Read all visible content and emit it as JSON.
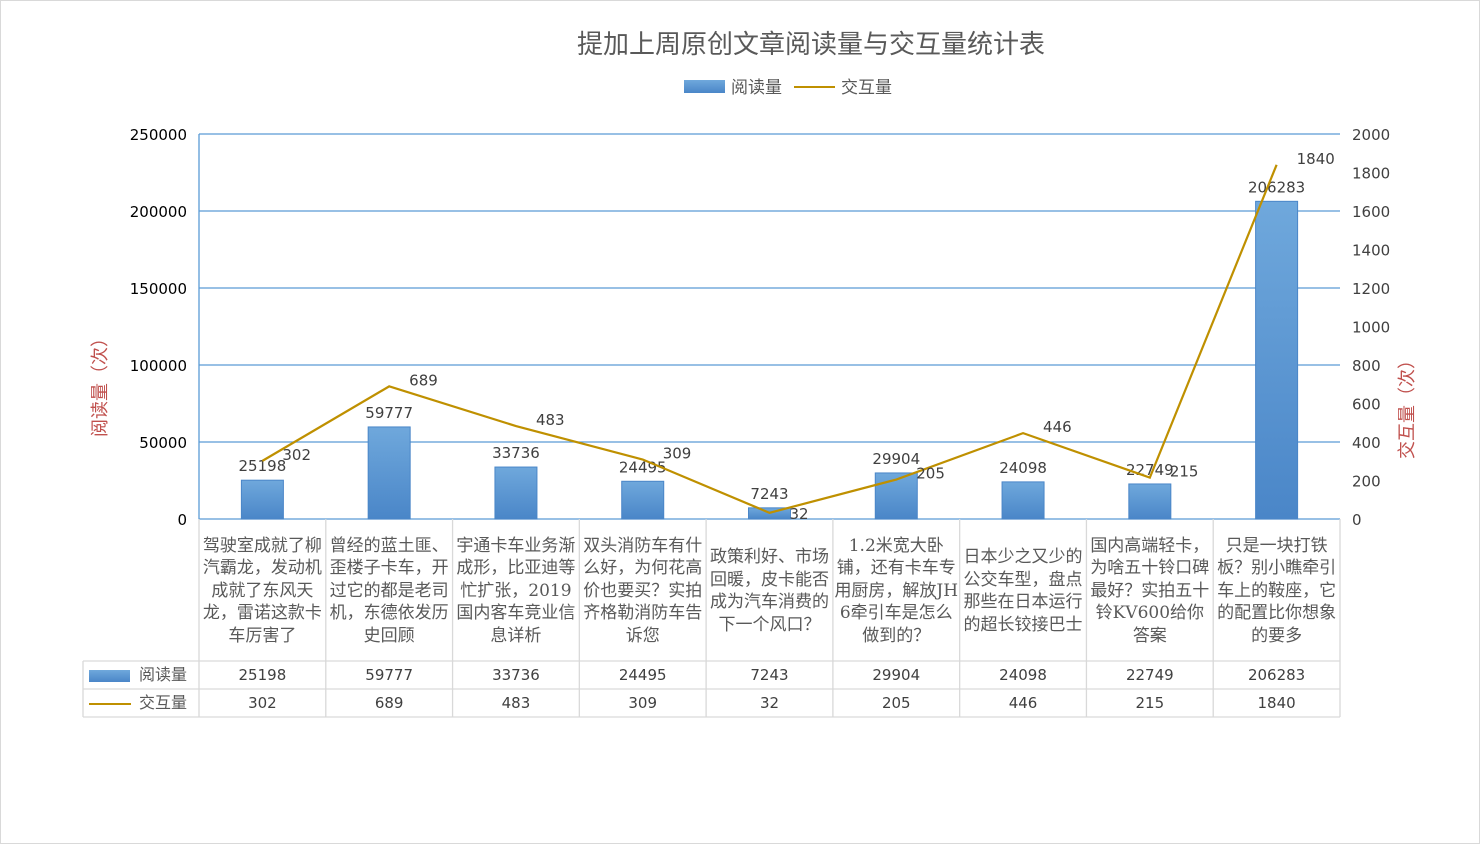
{
  "chart_data": {
    "type": "bar",
    "title": "提加上周原创文章阅读量与交互量统计表",
    "categories": [
      "驾驶室成就了柳汽霸龙，发动机成就了东风天龙，雷诺这款卡车厉害了",
      "曾经的蓝土匪、歪楼子卡车，开过它的都是老司机，东德依发历史回顾",
      "宇通卡车业务渐成形，比亚迪等忙扩张，2019国内客车竞业信息详析",
      "双头消防车有什么好，为何花高价也要买？实拍齐格勒消防车告诉您",
      "政策利好、市场回暖，皮卡能否成为汽车消费的下一个风口？",
      "1.2米宽大卧铺，还有卡车专用厨房，解放JH6牵引车是怎么做到的？",
      "日本少之又少的公交车型，盘点那些在日本运行的超长铰接巴士",
      "国内高端轻卡，为啥五十铃口碑最好？实拍五十铃KV600给你答案",
      "只是一块打铁板？别小瞧牵引车上的鞍座，它的配置比你想象的要多"
    ],
    "series": [
      {
        "name": "阅读量",
        "type": "bar",
        "axis": "left",
        "color": "#5b9bd5",
        "values": [
          25198,
          59777,
          33736,
          24495,
          7243,
          29904,
          24098,
          22749,
          206283
        ]
      },
      {
        "name": "交互量",
        "type": "line",
        "axis": "right",
        "color": "#bf9000",
        "values": [
          302,
          689,
          483,
          309,
          32,
          205,
          446,
          215,
          1840
        ]
      }
    ],
    "ylabel": "阅读量（次）",
    "y2label": "交互量（次）",
    "ylim": [
      0,
      250000
    ],
    "y2lim": [
      0,
      2000
    ],
    "yticks": [
      "0",
      "50000",
      "100000",
      "150000",
      "200000",
      "250000"
    ],
    "y2ticks": [
      "0",
      "200",
      "400",
      "600",
      "800",
      "1000",
      "1200",
      "1400",
      "1600",
      "1800",
      "2000"
    ],
    "grid": true,
    "legend": "top",
    "data_table": true
  }
}
